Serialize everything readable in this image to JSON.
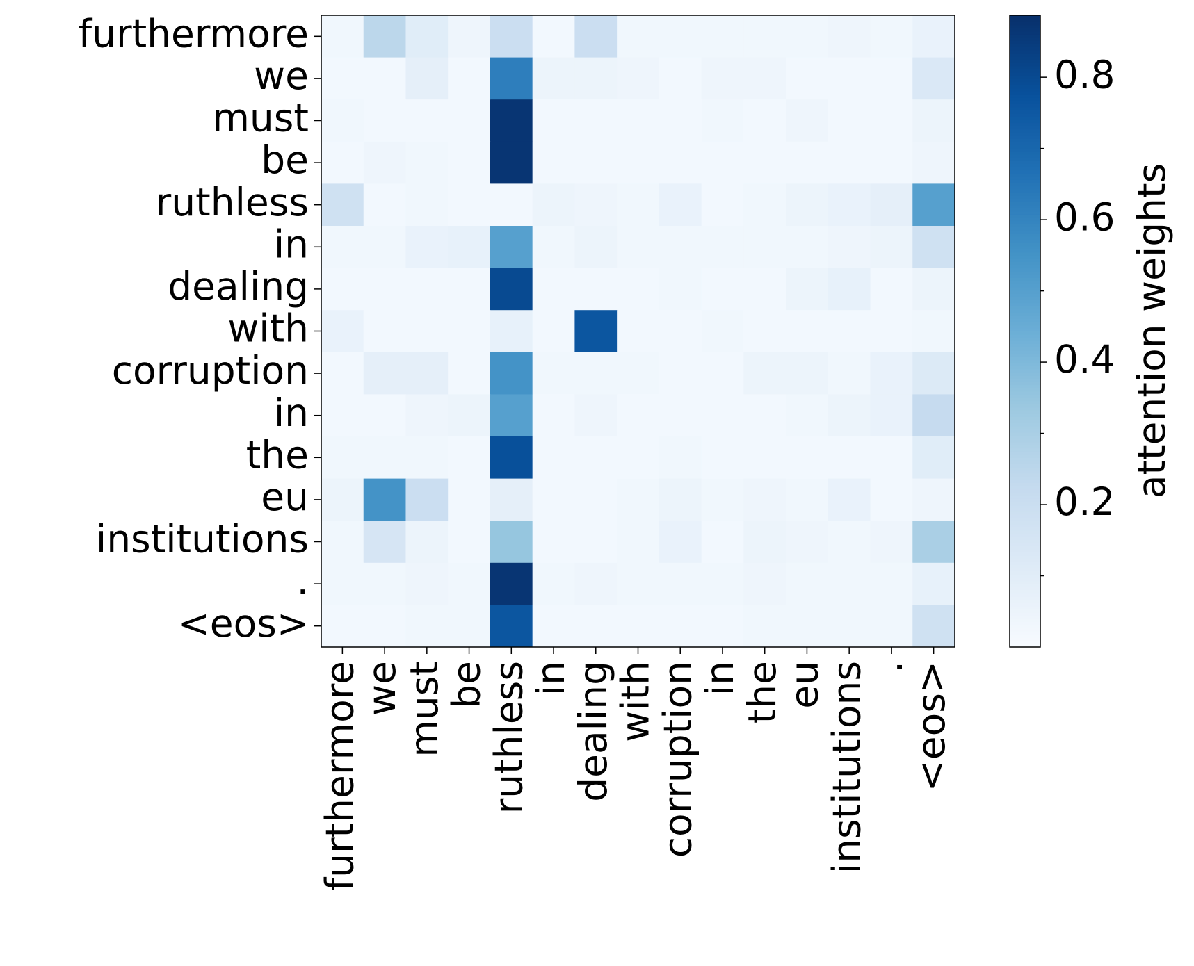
{
  "chart_data": {
    "type": "heatmap",
    "categories": [
      "furthermore",
      "we",
      "must",
      "be",
      "ruthless",
      "in",
      "dealing",
      "with",
      "corruption",
      "in",
      "the",
      "eu",
      "institutions",
      ".",
      "<eos>"
    ],
    "y_categories": [
      "furthermore",
      "we",
      "must",
      "be",
      "ruthless",
      "in",
      "dealing",
      "with",
      "corruption",
      "in",
      "the",
      "eu",
      "institutions",
      ".",
      "<eos>"
    ],
    "values": [
      [
        0.03,
        0.25,
        0.1,
        0.04,
        0.2,
        0.02,
        0.2,
        0.03,
        0.03,
        0.03,
        0.03,
        0.03,
        0.04,
        0.03,
        0.06
      ],
      [
        0.02,
        0.02,
        0.08,
        0.02,
        0.62,
        0.05,
        0.05,
        0.04,
        0.02,
        0.04,
        0.04,
        0.02,
        0.02,
        0.02,
        0.13
      ],
      [
        0.03,
        0.02,
        0.02,
        0.02,
        0.87,
        0.02,
        0.02,
        0.02,
        0.02,
        0.03,
        0.02,
        0.04,
        0.02,
        0.02,
        0.05
      ],
      [
        0.02,
        0.04,
        0.03,
        0.02,
        0.87,
        0.02,
        0.02,
        0.02,
        0.02,
        0.02,
        0.02,
        0.02,
        0.02,
        0.02,
        0.04
      ],
      [
        0.18,
        0.02,
        0.03,
        0.02,
        0.02,
        0.05,
        0.04,
        0.03,
        0.06,
        0.02,
        0.03,
        0.05,
        0.06,
        0.08,
        0.5
      ],
      [
        0.03,
        0.03,
        0.06,
        0.07,
        0.5,
        0.03,
        0.05,
        0.03,
        0.03,
        0.03,
        0.03,
        0.03,
        0.04,
        0.05,
        0.18
      ],
      [
        0.02,
        0.02,
        0.02,
        0.02,
        0.8,
        0.02,
        0.02,
        0.02,
        0.03,
        0.02,
        0.02,
        0.05,
        0.07,
        0.02,
        0.05
      ],
      [
        0.06,
        0.02,
        0.02,
        0.02,
        0.07,
        0.02,
        0.76,
        0.02,
        0.02,
        0.03,
        0.02,
        0.02,
        0.02,
        0.02,
        0.03
      ],
      [
        0.02,
        0.08,
        0.08,
        0.02,
        0.55,
        0.03,
        0.03,
        0.03,
        0.02,
        0.02,
        0.05,
        0.05,
        0.03,
        0.06,
        0.12
      ],
      [
        0.02,
        0.02,
        0.04,
        0.05,
        0.5,
        0.02,
        0.04,
        0.02,
        0.02,
        0.02,
        0.02,
        0.03,
        0.05,
        0.06,
        0.22
      ],
      [
        0.03,
        0.03,
        0.03,
        0.02,
        0.78,
        0.02,
        0.02,
        0.02,
        0.03,
        0.02,
        0.02,
        0.02,
        0.02,
        0.02,
        0.1
      ],
      [
        0.05,
        0.55,
        0.2,
        0.02,
        0.08,
        0.02,
        0.02,
        0.03,
        0.05,
        0.03,
        0.04,
        0.03,
        0.06,
        0.02,
        0.04
      ],
      [
        0.03,
        0.15,
        0.05,
        0.02,
        0.35,
        0.02,
        0.02,
        0.03,
        0.06,
        0.02,
        0.05,
        0.04,
        0.03,
        0.04,
        0.3
      ],
      [
        0.03,
        0.03,
        0.04,
        0.03,
        0.87,
        0.03,
        0.04,
        0.03,
        0.03,
        0.03,
        0.04,
        0.03,
        0.03,
        0.03,
        0.07
      ],
      [
        0.02,
        0.02,
        0.03,
        0.03,
        0.76,
        0.02,
        0.02,
        0.02,
        0.02,
        0.02,
        0.03,
        0.03,
        0.03,
        0.03,
        0.18
      ]
    ],
    "colors": [
      "#f7fbff",
      "#deebf7",
      "#c6dbef",
      "#9ecae1",
      "#6baed6",
      "#4292c6",
      "#2171b5",
      "#08519c",
      "#08306b"
    ],
    "colorbar_label": "attention weights",
    "clim": [
      0.0,
      0.887
    ],
    "cticks": [
      0.2,
      0.4,
      0.6,
      0.8
    ],
    "cminorticks": [
      0.1,
      0.3,
      0.5,
      0.7
    ]
  }
}
